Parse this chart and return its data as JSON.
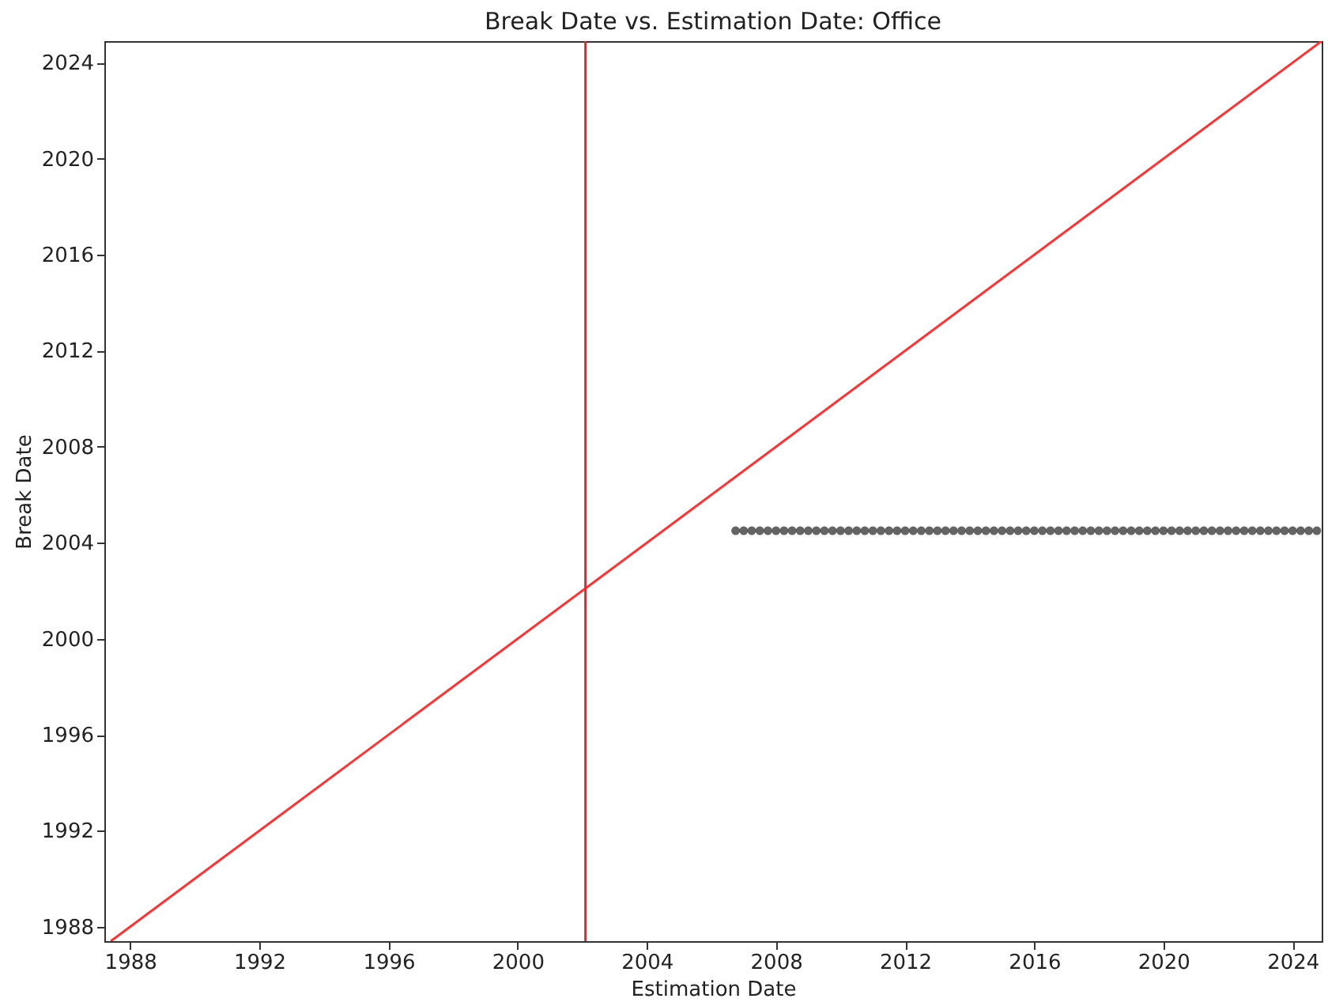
{
  "chart_data": {
    "type": "scatter",
    "title": "Break Date vs. Estimation Date: Office",
    "xlabel": "Estimation Date",
    "ylabel": "Break Date",
    "xlim": [
      1987.2,
      2024.9
    ],
    "ylim": [
      1987.4,
      2024.9
    ],
    "xticks": [
      1988,
      1992,
      1996,
      2000,
      2004,
      2008,
      2012,
      2016,
      2020,
      2024
    ],
    "yticks": [
      1988,
      1992,
      1996,
      2000,
      2004,
      2008,
      2012,
      2016,
      2020,
      2024
    ],
    "grid": false,
    "series": [
      {
        "type": "line",
        "marker": "none",
        "color": "#ff3333",
        "x": [
          1987.4,
          2024.9
        ],
        "values": [
          1987.4,
          2024.9
        ]
      },
      {
        "marker": "circle",
        "color": "#222222",
        "x": [
          2006.75,
          2007,
          2007.25,
          2007.5,
          2007.75,
          2008,
          2008.25,
          2008.5,
          2008.75,
          2009,
          2009.25,
          2009.5,
          2009.75,
          2010,
          2010.25,
          2010.5,
          2010.75,
          2011,
          2011.25,
          2011.5,
          2011.75,
          2012,
          2012.25,
          2012.5,
          2012.75,
          2013,
          2013.25,
          2013.5,
          2013.75,
          2014,
          2014.25,
          2014.5,
          2014.75,
          2015,
          2015.25,
          2015.5,
          2015.75,
          2016,
          2016.25,
          2016.5,
          2016.75,
          2017,
          2017.25,
          2017.5,
          2017.75,
          2018,
          2018.25,
          2018.5,
          2018.75,
          2019,
          2019.25,
          2019.5,
          2019.75,
          2020,
          2020.25,
          2020.5,
          2020.75,
          2021,
          2021.25,
          2021.5,
          2021.75,
          2022,
          2022.25,
          2022.5,
          2022.75,
          2023,
          2023.25,
          2023.5,
          2023.75,
          2024,
          2024.25,
          2024.5,
          2024.75
        ],
        "values": [
          2004.5,
          2004.5,
          2004.5,
          2004.5,
          2004.5,
          2004.5,
          2004.5,
          2004.5,
          2004.5,
          2004.5,
          2004.5,
          2004.5,
          2004.5,
          2004.5,
          2004.5,
          2004.5,
          2004.5,
          2004.5,
          2004.5,
          2004.5,
          2004.5,
          2004.5,
          2004.5,
          2004.5,
          2004.5,
          2004.5,
          2004.5,
          2004.5,
          2004.5,
          2004.5,
          2004.5,
          2004.5,
          2004.5,
          2004.5,
          2004.5,
          2004.5,
          2004.5,
          2004.5,
          2004.5,
          2004.5,
          2004.5,
          2004.5,
          2004.5,
          2004.5,
          2004.5,
          2004.5,
          2004.5,
          2004.5,
          2004.5,
          2004.5,
          2004.5,
          2004.5,
          2004.5,
          2004.5,
          2004.5,
          2004.5,
          2004.5,
          2004.5,
          2004.5,
          2004.5,
          2004.5,
          2004.5,
          2004.5,
          2004.5,
          2004.5,
          2004.5,
          2004.5,
          2004.5,
          2004.5,
          2004.5,
          2004.5,
          2004.5,
          2004.5
        ]
      }
    ],
    "ref_lines": [
      {
        "axis": "x",
        "value": 2002.1,
        "color": "#ee2222"
      }
    ]
  }
}
